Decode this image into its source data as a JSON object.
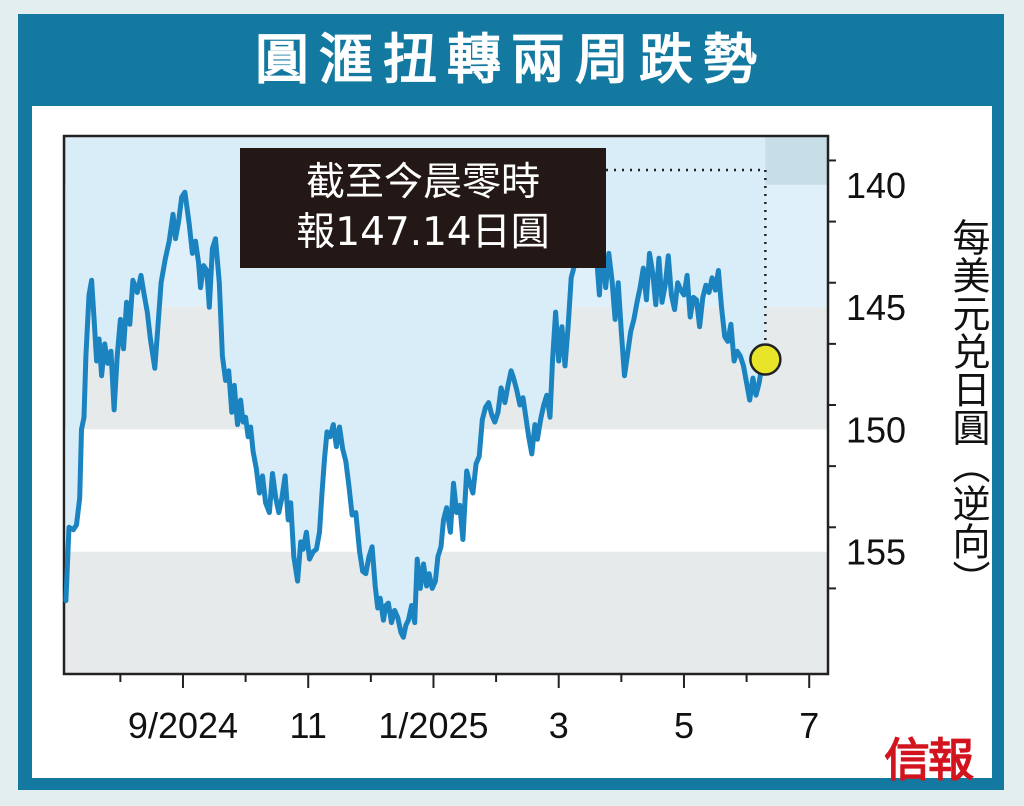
{
  "title": "圓滙扭轉兩周跌勢",
  "note": {
    "line1": "截至今晨零時",
    "line2": "報147.14日圓"
  },
  "y_unit": "每美元兑日圓（逆向）",
  "logo": "信報",
  "colors": {
    "frame": "#1479a0",
    "line": "#1b84c0",
    "band_dark": "#c7dde8",
    "band_light": "#dff0fa",
    "band_grey": "#e7eaea",
    "marker": "#e8e42a"
  },
  "chart_data": {
    "type": "line",
    "title": "圓滙扭轉兩周跌勢",
    "ylabel": "每美元兑日圓（逆向）",
    "y_inverted": true,
    "ylim": [
      138,
      160
    ],
    "yticks": [
      140,
      145,
      150,
      155
    ],
    "x_tick_labels": [
      "9/2024",
      "11",
      "1/2025",
      "3",
      "5",
      "7"
    ],
    "x_tick_months": [
      1,
      3,
      5,
      7,
      9,
      11
    ],
    "xlim_months": [
      -0.9,
      11.3
    ],
    "grid": false,
    "last_value": 147.14,
    "series": [
      {
        "values": [
          [
            -0.87,
            157.0
          ],
          [
            -0.82,
            154.0
          ],
          [
            -0.75,
            154.1
          ],
          [
            -0.7,
            153.9
          ],
          [
            -0.65,
            152.8
          ],
          [
            -0.62,
            150.0
          ],
          [
            -0.58,
            149.5
          ],
          [
            -0.55,
            147.0
          ],
          [
            -0.5,
            144.5
          ],
          [
            -0.46,
            143.9
          ],
          [
            -0.42,
            145.5
          ],
          [
            -0.38,
            147.2
          ],
          [
            -0.34,
            146.3
          ],
          [
            -0.3,
            147.8
          ],
          [
            -0.25,
            146.5
          ],
          [
            -0.2,
            147.3
          ],
          [
            -0.15,
            146.8
          ],
          [
            -0.1,
            149.2
          ],
          [
            -0.05,
            147.0
          ],
          [
            0.0,
            145.5
          ],
          [
            0.05,
            146.7
          ],
          [
            0.1,
            144.8
          ],
          [
            0.15,
            145.7
          ],
          [
            0.2,
            143.9
          ],
          [
            0.27,
            144.4
          ],
          [
            0.33,
            143.7
          ],
          [
            0.38,
            144.5
          ],
          [
            0.43,
            145.2
          ],
          [
            0.48,
            146.3
          ],
          [
            0.55,
            147.5
          ],
          [
            0.6,
            145.8
          ],
          [
            0.65,
            144.0
          ],
          [
            0.72,
            143.0
          ],
          [
            0.78,
            142.3
          ],
          [
            0.84,
            141.2
          ],
          [
            0.88,
            142.2
          ],
          [
            0.93,
            141.5
          ],
          [
            0.98,
            140.5
          ],
          [
            1.03,
            140.3
          ],
          [
            1.1,
            141.6
          ],
          [
            1.15,
            142.8
          ],
          [
            1.2,
            142.3
          ],
          [
            1.25,
            143.2
          ],
          [
            1.28,
            144.2
          ],
          [
            1.33,
            143.3
          ],
          [
            1.38,
            143.5
          ],
          [
            1.42,
            145.0
          ],
          [
            1.47,
            142.6
          ],
          [
            1.52,
            142.2
          ],
          [
            1.58,
            144.0
          ],
          [
            1.63,
            147.0
          ],
          [
            1.68,
            148.0
          ],
          [
            1.73,
            147.6
          ],
          [
            1.78,
            149.3
          ],
          [
            1.82,
            148.2
          ],
          [
            1.87,
            149.8
          ],
          [
            1.92,
            148.8
          ],
          [
            1.96,
            149.7
          ],
          [
            2.0,
            149.5
          ],
          [
            2.04,
            150.3
          ],
          [
            2.08,
            149.9
          ],
          [
            2.12,
            150.9
          ],
          [
            2.17,
            151.6
          ],
          [
            2.22,
            152.6
          ],
          [
            2.27,
            151.9
          ],
          [
            2.32,
            153.0
          ],
          [
            2.38,
            153.4
          ],
          [
            2.43,
            151.8
          ],
          [
            2.48,
            152.8
          ],
          [
            2.53,
            153.4
          ],
          [
            2.58,
            152.8
          ],
          [
            2.63,
            151.9
          ],
          [
            2.68,
            153.7
          ],
          [
            2.72,
            153.0
          ],
          [
            2.77,
            155.2
          ],
          [
            2.83,
            156.2
          ],
          [
            2.88,
            154.6
          ],
          [
            2.92,
            154.9
          ],
          [
            2.97,
            154.2
          ],
          [
            3.02,
            155.3
          ],
          [
            3.08,
            155.0
          ],
          [
            3.13,
            154.9
          ],
          [
            3.18,
            154.2
          ],
          [
            3.22,
            152.6
          ],
          [
            3.26,
            151.2
          ],
          [
            3.3,
            150.1
          ],
          [
            3.35,
            150.3
          ],
          [
            3.4,
            149.8
          ],
          [
            3.45,
            150.7
          ],
          [
            3.5,
            149.9
          ],
          [
            3.55,
            150.8
          ],
          [
            3.6,
            151.3
          ],
          [
            3.65,
            152.3
          ],
          [
            3.7,
            153.5
          ],
          [
            3.76,
            153.4
          ],
          [
            3.82,
            155.0
          ],
          [
            3.87,
            155.8
          ],
          [
            3.92,
            155.9
          ],
          [
            3.97,
            155.2
          ],
          [
            4.02,
            154.8
          ],
          [
            4.07,
            156.4
          ],
          [
            4.11,
            157.3
          ],
          [
            4.15,
            156.9
          ],
          [
            4.2,
            157.8
          ],
          [
            4.24,
            157.2
          ],
          [
            4.28,
            157.1
          ],
          [
            4.33,
            157.9
          ],
          [
            4.38,
            157.4
          ],
          [
            4.43,
            157.7
          ],
          [
            4.48,
            158.3
          ],
          [
            4.52,
            158.5
          ],
          [
            4.56,
            158.0
          ],
          [
            4.6,
            157.8
          ],
          [
            4.65,
            157.2
          ],
          [
            4.7,
            157.9
          ],
          [
            4.74,
            155.3
          ],
          [
            4.79,
            156.5
          ],
          [
            4.84,
            155.5
          ],
          [
            4.89,
            156.4
          ],
          [
            4.93,
            155.9
          ],
          [
            4.98,
            156.5
          ],
          [
            5.03,
            156.2
          ],
          [
            5.07,
            155.2
          ],
          [
            5.12,
            154.8
          ],
          [
            5.16,
            153.7
          ],
          [
            5.21,
            153.2
          ],
          [
            5.27,
            154.2
          ],
          [
            5.32,
            152.2
          ],
          [
            5.37,
            153.4
          ],
          [
            5.42,
            153.1
          ],
          [
            5.47,
            154.5
          ],
          [
            5.53,
            151.7
          ],
          [
            5.58,
            152.2
          ],
          [
            5.63,
            152.6
          ],
          [
            5.68,
            151.4
          ],
          [
            5.73,
            151.1
          ],
          [
            5.78,
            149.6
          ],
          [
            5.83,
            149.1
          ],
          [
            5.88,
            148.9
          ],
          [
            5.93,
            149.4
          ],
          [
            5.98,
            149.7
          ],
          [
            6.03,
            149.3
          ],
          [
            6.08,
            148.3
          ],
          [
            6.14,
            148.9
          ],
          [
            6.19,
            148.2
          ],
          [
            6.24,
            147.6
          ],
          [
            6.28,
            147.9
          ],
          [
            6.33,
            148.4
          ],
          [
            6.38,
            149.0
          ],
          [
            6.43,
            148.7
          ],
          [
            6.47,
            149.4
          ],
          [
            6.52,
            150.3
          ],
          [
            6.57,
            151.0
          ],
          [
            6.62,
            149.8
          ],
          [
            6.66,
            150.4
          ],
          [
            6.71,
            149.6
          ],
          [
            6.76,
            149.0
          ],
          [
            6.81,
            148.6
          ],
          [
            6.86,
            149.5
          ],
          [
            6.9,
            147.2
          ],
          [
            6.95,
            145.2
          ],
          [
            7.0,
            147.2
          ],
          [
            7.05,
            145.8
          ],
          [
            7.1,
            147.4
          ],
          [
            7.15,
            145.8
          ],
          [
            7.2,
            143.8
          ],
          [
            7.25,
            143.3
          ],
          [
            7.3,
            142.7
          ],
          [
            7.35,
            141.5
          ],
          [
            7.4,
            142.2
          ],
          [
            7.45,
            141.8
          ],
          [
            7.5,
            140.8
          ],
          [
            7.55,
            142.0
          ],
          [
            7.6,
            142.8
          ],
          [
            7.65,
            144.5
          ],
          [
            7.7,
            142.4
          ],
          [
            7.75,
            144.2
          ],
          [
            7.8,
            142.8
          ],
          [
            7.85,
            143.9
          ],
          [
            7.9,
            145.5
          ],
          [
            7.95,
            144.0
          ],
          [
            8.0,
            146.0
          ],
          [
            8.05,
            147.8
          ],
          [
            8.1,
            146.9
          ],
          [
            8.15,
            146.0
          ],
          [
            8.2,
            145.5
          ],
          [
            8.25,
            144.8
          ],
          [
            8.3,
            144.2
          ],
          [
            8.35,
            143.4
          ],
          [
            8.4,
            144.7
          ],
          [
            8.45,
            142.8
          ],
          [
            8.5,
            143.6
          ],
          [
            8.55,
            144.9
          ],
          [
            8.6,
            143.0
          ],
          [
            8.65,
            144.8
          ],
          [
            8.7,
            144.1
          ],
          [
            8.75,
            142.9
          ],
          [
            8.8,
            144.5
          ],
          [
            8.85,
            145.1
          ],
          [
            8.9,
            144.0
          ],
          [
            8.95,
            144.3
          ],
          [
            9.0,
            144.5
          ],
          [
            9.05,
            143.7
          ],
          [
            9.1,
            145.4
          ],
          [
            9.15,
            144.6
          ],
          [
            9.2,
            144.7
          ],
          [
            9.25,
            145.8
          ],
          [
            9.3,
            144.6
          ],
          [
            9.35,
            144.1
          ],
          [
            9.4,
            144.4
          ],
          [
            9.45,
            143.8
          ],
          [
            9.5,
            144.3
          ],
          [
            9.55,
            143.5
          ],
          [
            9.6,
            145.0
          ],
          [
            9.65,
            146.2
          ],
          [
            9.7,
            146.4
          ],
          [
            9.75,
            145.7
          ],
          [
            9.8,
            147.2
          ],
          [
            9.85,
            146.8
          ],
          [
            9.9,
            147.0
          ],
          [
            9.95,
            147.4
          ],
          [
            10.0,
            148.1
          ],
          [
            10.05,
            148.8
          ],
          [
            10.1,
            147.9
          ],
          [
            10.15,
            148.6
          ],
          [
            10.2,
            148.1
          ],
          [
            10.25,
            147.3
          ],
          [
            10.3,
            147.14
          ]
        ]
      }
    ]
  }
}
